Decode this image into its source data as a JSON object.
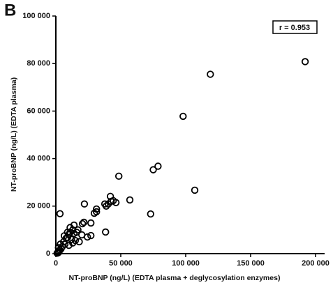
{
  "chart_data": {
    "type": "scatter",
    "panel_label": "B",
    "annotation": "r = 0.953",
    "xlabel": "NT-proBNP (ng/L) (EDTA plasma + deglycosylation enzymes)",
    "ylabel": "NT-proBNP (ng/L) (EDTA plasma)",
    "color": "#000000",
    "xlim": [
      0,
      207000
    ],
    "ylim": [
      0,
      100000
    ],
    "xticks": [
      0,
      {
        "value": 50000,
        "label": "50 000"
      },
      {
        "value": 100000,
        "label": "100 000"
      },
      {
        "value": 150000,
        "label": "150 000"
      },
      {
        "value": 200000,
        "label": "200 000"
      }
    ],
    "yticks": [
      0,
      {
        "value": 20000,
        "label": "20 000"
      },
      {
        "value": 40000,
        "label": "40 000"
      },
      {
        "value": 60000,
        "label": "60 000"
      },
      {
        "value": 80000,
        "label": "80 000"
      },
      {
        "value": 100000,
        "label": "100 000"
      }
    ],
    "x": [
      192000,
      119000,
      98000,
      48500,
      78700,
      75000,
      107000,
      73000,
      57000,
      3200,
      42000,
      42600,
      40400,
      44200,
      46300,
      37700,
      38800,
      22000,
      31300,
      31300,
      29600,
      38300,
      21600,
      20500,
      27000,
      27000,
      20000,
      24300,
      17000,
      16000,
      14000,
      13000,
      11000,
      10000,
      9000,
      12000,
      8000,
      15000,
      6000,
      7000,
      5000,
      4000,
      3000,
      2500,
      2000,
      1500,
      1000,
      10000,
      13000,
      18000,
      9000,
      6500,
      3500,
      2000,
      11000,
      14000
    ],
    "y": [
      80800,
      75500,
      57800,
      32600,
      36800,
      35300,
      26700,
      16700,
      22600,
      16800,
      24100,
      22000,
      20900,
      22300,
      21500,
      20900,
      20000,
      20900,
      18800,
      17600,
      17000,
      9100,
      13200,
      12600,
      12900,
      7600,
      7900,
      7000,
      10000,
      9000,
      8500,
      10000,
      9000,
      8000,
      9000,
      6000,
      6500,
      5500,
      5000,
      4000,
      3000,
      2000,
      1500,
      800,
      500,
      300,
      200,
      3500,
      4500,
      5000,
      6800,
      7500,
      4000,
      2500,
      11000,
      12000
    ]
  }
}
